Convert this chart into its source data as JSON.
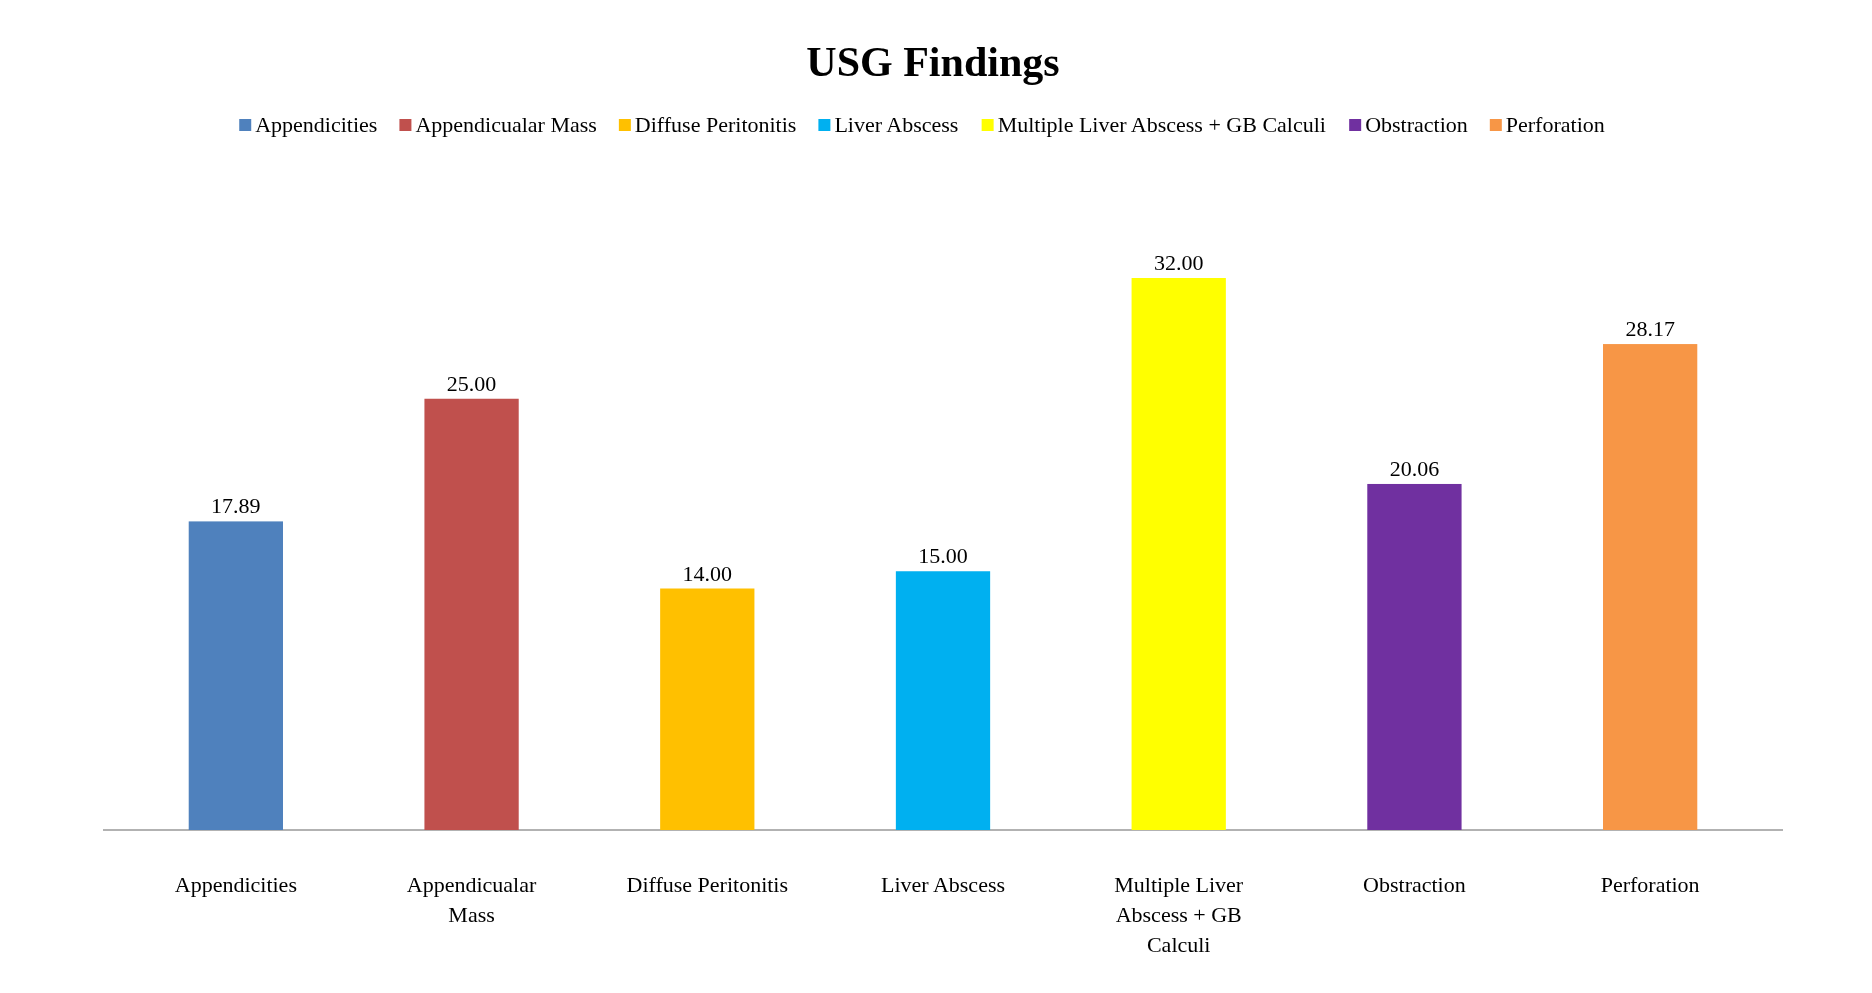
{
  "chart_data": {
    "type": "bar",
    "title": "USG Findings",
    "categories": [
      "Appendicities",
      "Appendicualar Mass",
      "Diffuse Peritonitis",
      "Liver Abscess",
      "Multiple Liver Abscess + GB Calculi",
      "Obstraction",
      "Perforation"
    ],
    "series": [
      {
        "name": "Appendicities",
        "color": "#4f81bd",
        "values": [
          17.89,
          null,
          null,
          null,
          null,
          null,
          null
        ],
        "value_labels": [
          "17.89",
          null,
          null,
          null,
          null,
          null,
          null
        ]
      },
      {
        "name": "Appendicualar Mass",
        "color": "#c0504d",
        "values": [
          null,
          25.0,
          null,
          null,
          null,
          null,
          null
        ],
        "value_labels": [
          null,
          "25.00",
          null,
          null,
          null,
          null,
          null
        ]
      },
      {
        "name": "Diffuse Peritonitis",
        "color": "#ffc000",
        "values": [
          null,
          null,
          14.0,
          null,
          null,
          null,
          null
        ],
        "value_labels": [
          null,
          null,
          "14.00",
          null,
          null,
          null,
          null
        ]
      },
      {
        "name": "Liver Abscess",
        "color": "#00b0f0",
        "values": [
          null,
          null,
          null,
          15.0,
          null,
          null,
          null
        ],
        "value_labels": [
          null,
          null,
          null,
          "15.00",
          null,
          null,
          null
        ]
      },
      {
        "name": "Multiple Liver Abscess + GB Calculi",
        "color": "#ffff00",
        "values": [
          null,
          null,
          null,
          null,
          32.0,
          null,
          null
        ],
        "value_labels": [
          null,
          null,
          null,
          null,
          "32.00",
          null,
          null
        ]
      },
      {
        "name": "Obstraction",
        "color": "#7030a0",
        "values": [
          null,
          null,
          null,
          null,
          null,
          20.06,
          null
        ],
        "value_labels": [
          null,
          null,
          null,
          null,
          null,
          "20.06",
          null
        ]
      },
      {
        "name": "Perforation",
        "color": "#f79646",
        "values": [
          null,
          null,
          null,
          null,
          null,
          null,
          28.17
        ],
        "value_labels": [
          null,
          null,
          null,
          null,
          null,
          null,
          "28.17"
        ]
      }
    ],
    "legend": "top"
  }
}
